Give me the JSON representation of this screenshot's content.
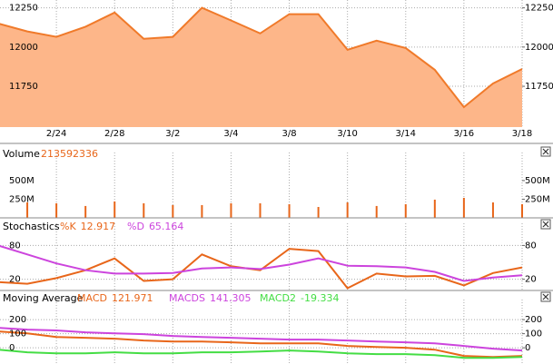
{
  "chart_data": [
    {
      "type": "area",
      "color": "#f07a2a",
      "fill": "#fdb689",
      "categories": [
        null,
        null,
        "2/24",
        null,
        "2/28",
        null,
        "3/2",
        null,
        "3/4",
        null,
        "3/8",
        null,
        "3/10",
        null,
        "3/14",
        null,
        "3/16",
        null,
        "3/18"
      ],
      "values": [
        12150,
        12100,
        12065,
        12130,
        12220,
        12053,
        12065,
        12250,
        12170,
        12087,
        12210,
        12210,
        11983,
        12041,
        11994,
        11855,
        11617,
        11768,
        11860
      ],
      "ylim": [
        11490,
        12300
      ],
      "yticks": [
        11750,
        12000,
        12250
      ],
      "grid": true
    },
    {
      "type": "bar",
      "title": "Volume",
      "color": "#e8661a",
      "reading": 213592336,
      "values": [
        null,
        207000000,
        195000000,
        159000000,
        220000000,
        195000000,
        171000000,
        171000000,
        195000000,
        195000000,
        183000000,
        146000000,
        207000000,
        159000000,
        183000000,
        244000000,
        268000000,
        207000000,
        183000000
      ],
      "ylim": [
        0,
        730000000
      ],
      "yticks": [
        {
          "value": 250000000,
          "label": "250M"
        },
        {
          "value": 500000000,
          "label": "500M"
        }
      ],
      "grid": false
    },
    {
      "type": "line",
      "title": "Stochastics",
      "series": [
        {
          "name": "%K",
          "color": "#e8661a",
          "reading": 12.917,
          "values": [
            15,
            12,
            22,
            36,
            57,
            17,
            20,
            64,
            43,
            36,
            74,
            70,
            4,
            30,
            25,
            26,
            9,
            31,
            41
          ]
        },
        {
          "name": "%D",
          "color": "#cc44dd",
          "reading": 65.164,
          "values": [
            80,
            64,
            48,
            36,
            30,
            30,
            31,
            39,
            41,
            38,
            46,
            57,
            44,
            43,
            41,
            33,
            17,
            23,
            27
          ]
        }
      ],
      "ylim": [
        0,
        100
      ],
      "yticks": [
        20,
        80
      ],
      "grid": true
    },
    {
      "type": "line",
      "title": "Moving Average",
      "series": [
        {
          "name": "MACD",
          "color": "#e8661a",
          "reading": 121.971,
          "values": [
            116,
            103,
            77,
            71,
            65,
            52,
            45,
            45,
            39,
            32,
            32,
            32,
            13,
            6,
            0,
            -13,
            -58,
            -65,
            -58
          ]
        },
        {
          "name": "MACDS",
          "color": "#cc44dd",
          "reading": 141.305,
          "values": [
            142,
            129,
            123,
            110,
            103,
            97,
            84,
            77,
            71,
            65,
            58,
            58,
            52,
            45,
            39,
            32,
            13,
            -6,
            -19
          ]
        },
        {
          "name": "MACD2",
          "color": "#44dd44",
          "reading": -19.334,
          "values": [
            -13,
            -32,
            -39,
            -39,
            -32,
            -39,
            -39,
            -32,
            -32,
            -26,
            -19,
            -26,
            -39,
            -45,
            -45,
            -52,
            -71,
            -71,
            -65
          ]
        }
      ],
      "ylim": [
        -115,
        265
      ],
      "yticks": [
        0,
        100,
        200
      ],
      "grid": true
    }
  ]
}
